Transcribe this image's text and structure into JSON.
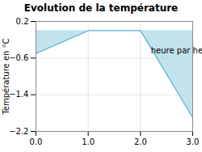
{
  "chart_data": {
    "type": "line",
    "title": "Evolution de la température",
    "y_label": "Température en °C",
    "x": [
      0,
      1,
      2,
      3
    ],
    "series": [
      {
        "type": "area",
        "color": "#aed8e6",
        "values": [
          -0.5,
          0.0,
          0.0,
          -1.9
        ]
      },
      {
        "type": "line",
        "color": "#5ab4cc",
        "values": [
          -0.5,
          0.0,
          0.0,
          -1.9
        ]
      }
    ],
    "annotations": [
      {
        "text": "heure par heure",
        "x": 2.2,
        "y": -0.38
      }
    ],
    "xlim": [
      0,
      3
    ],
    "ylim": [
      -2.2,
      0.2
    ],
    "xticks": [
      0,
      1,
      2,
      3
    ],
    "yticks": [
      0.2,
      -0.6,
      -1.4,
      -2.2
    ],
    "grid": true
  }
}
